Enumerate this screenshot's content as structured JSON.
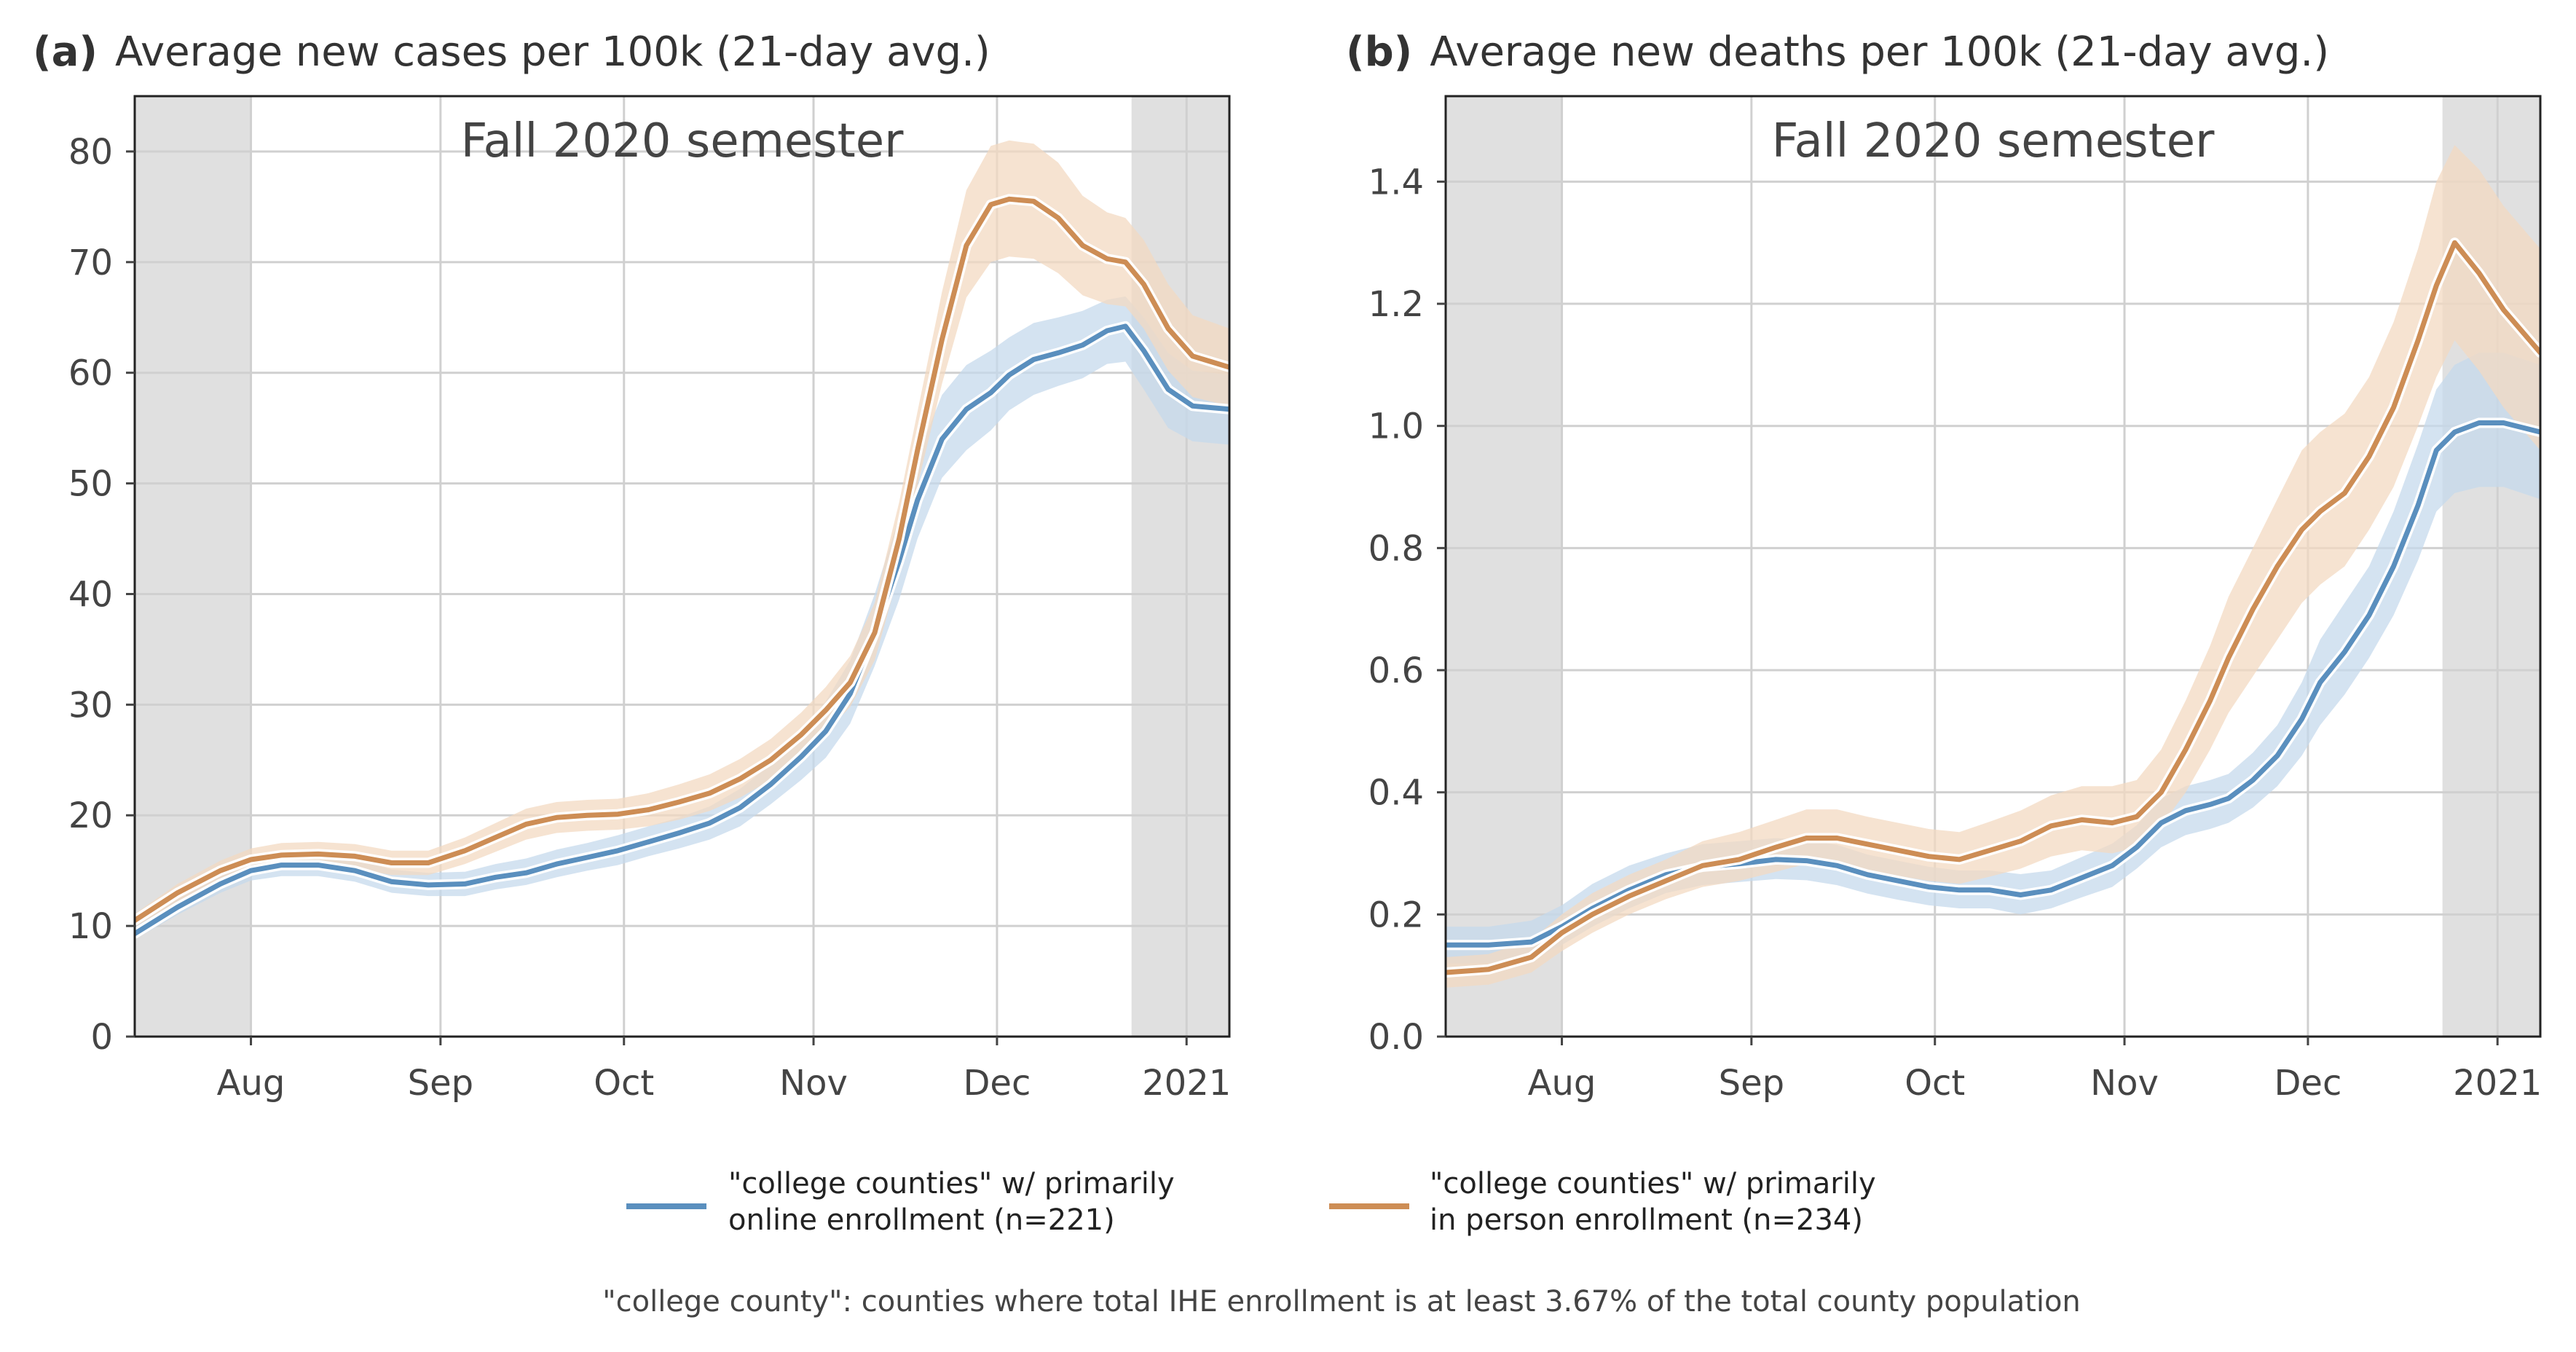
{
  "colors": {
    "online": "#5a8fbe",
    "in_person": "#cd8d55",
    "online_band": "#c6d9ec",
    "in_person_band": "#f3d9c2",
    "shade": "#e0e0e0",
    "grid": "#d0d0d0",
    "text": "#444444"
  },
  "legend": {
    "online": "\"college counties\" w/ primarily\nonline enrollment (n=221)",
    "in_person": "\"college counties\" w/ primarily\nin person enrollment (n=234)"
  },
  "footnote": "\"college county\": counties where total IHE enrollment is at least 3.67% of the total county population",
  "chart_data": [
    {
      "type": "line",
      "panel_label": "(a)",
      "title": "Average new cases per 100k (21-day avg.)",
      "annotation": "Fall 2020 semester",
      "x_unit": "date",
      "xlim": [
        "2020-07-13",
        "2021-01-08"
      ],
      "ylim": [
        0,
        85
      ],
      "x_ticks": [
        {
          "date": "2020-08-01",
          "label": "Aug"
        },
        {
          "date": "2020-09-01",
          "label": "Sep"
        },
        {
          "date": "2020-10-01",
          "label": "Oct"
        },
        {
          "date": "2020-11-01",
          "label": "Nov"
        },
        {
          "date": "2020-12-01",
          "label": "Dec"
        },
        {
          "date": "2021-01-01",
          "label": "2021"
        }
      ],
      "y_ticks": [
        0,
        10,
        20,
        30,
        40,
        50,
        60,
        70,
        80
      ],
      "y_tick_labels": [
        "0",
        "10",
        "20",
        "30",
        "40",
        "50",
        "60",
        "70",
        "80"
      ],
      "grid": true,
      "shaded_periods": [
        [
          "2020-07-13",
          "2020-08-01"
        ],
        [
          "2020-12-23",
          "2021-01-08"
        ]
      ],
      "x": [
        "2020-07-13",
        "2020-07-20",
        "2020-07-27",
        "2020-08-01",
        "2020-08-06",
        "2020-08-12",
        "2020-08-18",
        "2020-08-24",
        "2020-08-30",
        "2020-09-05",
        "2020-09-10",
        "2020-09-15",
        "2020-09-20",
        "2020-09-25",
        "2020-09-30",
        "2020-10-05",
        "2020-10-10",
        "2020-10-15",
        "2020-10-20",
        "2020-10-25",
        "2020-10-30",
        "2020-11-03",
        "2020-11-07",
        "2020-11-11",
        "2020-11-15",
        "2020-11-18",
        "2020-11-22",
        "2020-11-26",
        "2020-11-30",
        "2020-12-03",
        "2020-12-07",
        "2020-12-11",
        "2020-12-15",
        "2020-12-19",
        "2020-12-22",
        "2020-12-25",
        "2020-12-29",
        "2021-01-02",
        "2021-01-08"
      ],
      "series": [
        {
          "name": "\"college counties\" w/ primarily online enrollment (n=221)",
          "color": "#5a8fbe",
          "values": [
            9.3,
            11.7,
            13.8,
            15.0,
            15.5,
            15.5,
            15.0,
            14.0,
            13.7,
            13.8,
            14.4,
            14.8,
            15.6,
            16.2,
            16.8,
            17.6,
            18.4,
            19.3,
            20.7,
            22.8,
            25.3,
            27.6,
            31.0,
            36.5,
            43.0,
            48.5,
            54.0,
            56.7,
            58.2,
            59.8,
            61.2,
            61.8,
            62.5,
            63.8,
            64.2,
            62.0,
            58.5,
            57.0,
            56.7
          ],
          "band_lower": [
            8.8,
            11.0,
            13.0,
            14.1,
            14.5,
            14.5,
            14.0,
            13.0,
            12.7,
            12.7,
            13.3,
            13.7,
            14.4,
            15.0,
            15.5,
            16.3,
            17.0,
            17.8,
            19.0,
            21.0,
            23.2,
            25.2,
            28.3,
            33.5,
            39.5,
            45.0,
            50.5,
            53.0,
            54.8,
            56.6,
            58.0,
            58.8,
            59.5,
            60.8,
            61.0,
            58.5,
            55.0,
            53.8,
            53.5
          ],
          "band_upper": [
            9.9,
            12.4,
            14.6,
            15.9,
            16.6,
            16.6,
            16.1,
            15.1,
            14.8,
            14.9,
            15.6,
            16.1,
            16.9,
            17.5,
            18.2,
            19.0,
            19.8,
            20.8,
            22.4,
            24.6,
            27.6,
            30.3,
            34.0,
            40.0,
            47.0,
            52.5,
            58.0,
            60.7,
            62.0,
            63.2,
            64.5,
            65.0,
            65.6,
            66.6,
            66.9,
            65.0,
            61.8,
            60.2,
            59.8
          ]
        },
        {
          "name": "\"college counties\" w/ primarily in person enrollment (n=234)",
          "color": "#cd8d55",
          "values": [
            10.5,
            13.0,
            15.0,
            16.0,
            16.4,
            16.5,
            16.3,
            15.7,
            15.7,
            16.8,
            18.0,
            19.2,
            19.8,
            20.0,
            20.1,
            20.5,
            21.2,
            22.0,
            23.3,
            25.0,
            27.3,
            29.5,
            32.0,
            36.5,
            45.0,
            53.0,
            63.0,
            71.5,
            75.2,
            75.7,
            75.5,
            74.0,
            71.5,
            70.3,
            70.0,
            68.0,
            64.0,
            61.5,
            60.5
          ],
          "band_lower": [
            9.9,
            12.2,
            14.1,
            15.0,
            15.3,
            15.4,
            15.2,
            14.6,
            14.6,
            15.6,
            16.7,
            17.8,
            18.4,
            18.6,
            18.7,
            19.0,
            19.6,
            20.4,
            21.6,
            23.2,
            25.4,
            27.5,
            29.8,
            34.0,
            42.0,
            49.8,
            59.0,
            66.8,
            70.0,
            70.5,
            70.3,
            69.0,
            67.0,
            66.2,
            66.0,
            64.0,
            60.2,
            57.8,
            57.0
          ],
          "band_upper": [
            11.1,
            13.8,
            15.9,
            17.0,
            17.5,
            17.6,
            17.4,
            16.8,
            16.8,
            18.0,
            19.3,
            20.6,
            21.2,
            21.4,
            21.5,
            22.0,
            22.8,
            23.7,
            25.1,
            26.9,
            29.3,
            31.6,
            34.4,
            39.2,
            48.3,
            56.5,
            67.3,
            76.5,
            80.5,
            81.0,
            80.7,
            79.0,
            76.0,
            74.5,
            74.0,
            72.0,
            68.0,
            65.2,
            64.0
          ]
        }
      ]
    },
    {
      "type": "line",
      "panel_label": "(b)",
      "title": "Average new deaths per 100k (21-day avg.)",
      "annotation": "Fall 2020 semester",
      "x_unit": "date",
      "xlim": [
        "2020-07-13",
        "2021-01-08"
      ],
      "ylim": [
        0,
        1.54
      ],
      "x_ticks": [
        {
          "date": "2020-08-01",
          "label": "Aug"
        },
        {
          "date": "2020-09-01",
          "label": "Sep"
        },
        {
          "date": "2020-10-01",
          "label": "Oct"
        },
        {
          "date": "2020-11-01",
          "label": "Nov"
        },
        {
          "date": "2020-12-01",
          "label": "Dec"
        },
        {
          "date": "2021-01-01",
          "label": "2021"
        }
      ],
      "y_ticks": [
        0,
        0.2,
        0.4,
        0.6,
        0.8,
        1.0,
        1.2,
        1.4
      ],
      "y_tick_labels": [
        "0.0",
        "0.2",
        "0.4",
        "0.6",
        "0.8",
        "1.0",
        "1.2",
        "1.4"
      ],
      "grid": true,
      "shaded_periods": [
        [
          "2020-07-13",
          "2020-08-01"
        ],
        [
          "2020-12-23",
          "2021-01-08"
        ]
      ],
      "x": [
        "2020-07-13",
        "2020-07-20",
        "2020-07-27",
        "2020-08-01",
        "2020-08-06",
        "2020-08-12",
        "2020-08-18",
        "2020-08-24",
        "2020-08-30",
        "2020-09-05",
        "2020-09-10",
        "2020-09-15",
        "2020-09-20",
        "2020-09-25",
        "2020-09-30",
        "2020-10-05",
        "2020-10-10",
        "2020-10-15",
        "2020-10-20",
        "2020-10-25",
        "2020-10-30",
        "2020-11-03",
        "2020-11-07",
        "2020-11-11",
        "2020-11-15",
        "2020-11-18",
        "2020-11-22",
        "2020-11-26",
        "2020-11-30",
        "2020-12-03",
        "2020-12-07",
        "2020-12-11",
        "2020-12-15",
        "2020-12-19",
        "2020-12-22",
        "2020-12-25",
        "2020-12-29",
        "2021-01-02",
        "2021-01-08"
      ],
      "series": [
        {
          "name": "\"college counties\" w/ primarily online enrollment (n=221)",
          "color": "#5a8fbe",
          "values": [
            0.15,
            0.15,
            0.155,
            0.18,
            0.21,
            0.24,
            0.265,
            0.278,
            0.283,
            0.29,
            0.288,
            0.28,
            0.265,
            0.255,
            0.245,
            0.24,
            0.24,
            0.232,
            0.24,
            0.26,
            0.28,
            0.31,
            0.35,
            0.37,
            0.38,
            0.39,
            0.42,
            0.46,
            0.52,
            0.58,
            0.63,
            0.69,
            0.77,
            0.87,
            0.96,
            0.99,
            1.005,
            1.005,
            0.99
          ],
          "band_lower": [
            0.12,
            0.12,
            0.125,
            0.15,
            0.18,
            0.21,
            0.235,
            0.248,
            0.253,
            0.258,
            0.256,
            0.248,
            0.234,
            0.224,
            0.215,
            0.21,
            0.21,
            0.2,
            0.21,
            0.228,
            0.245,
            0.275,
            0.31,
            0.33,
            0.34,
            0.35,
            0.375,
            0.41,
            0.46,
            0.51,
            0.56,
            0.62,
            0.69,
            0.78,
            0.86,
            0.89,
            0.9,
            0.9,
            0.88
          ],
          "band_upper": [
            0.18,
            0.18,
            0.19,
            0.215,
            0.25,
            0.28,
            0.3,
            0.315,
            0.32,
            0.325,
            0.322,
            0.314,
            0.298,
            0.288,
            0.278,
            0.272,
            0.272,
            0.266,
            0.272,
            0.294,
            0.316,
            0.346,
            0.39,
            0.41,
            0.42,
            0.43,
            0.465,
            0.51,
            0.58,
            0.65,
            0.71,
            0.77,
            0.86,
            0.97,
            1.06,
            1.1,
            1.12,
            1.12,
            1.1
          ]
        },
        {
          "name": "\"college counties\" w/ primarily in person enrollment (n=234)",
          "color": "#cd8d55",
          "values": [
            0.105,
            0.11,
            0.13,
            0.17,
            0.2,
            0.23,
            0.255,
            0.28,
            0.29,
            0.31,
            0.325,
            0.325,
            0.315,
            0.305,
            0.295,
            0.29,
            0.305,
            0.32,
            0.345,
            0.355,
            0.35,
            0.36,
            0.4,
            0.47,
            0.55,
            0.62,
            0.7,
            0.77,
            0.83,
            0.86,
            0.89,
            0.95,
            1.03,
            1.14,
            1.23,
            1.3,
            1.25,
            1.19,
            1.12
          ],
          "band_lower": [
            0.08,
            0.085,
            0.105,
            0.14,
            0.17,
            0.2,
            0.225,
            0.245,
            0.255,
            0.27,
            0.283,
            0.283,
            0.273,
            0.263,
            0.255,
            0.25,
            0.262,
            0.275,
            0.295,
            0.305,
            0.3,
            0.31,
            0.345,
            0.4,
            0.47,
            0.53,
            0.59,
            0.65,
            0.71,
            0.74,
            0.77,
            0.83,
            0.9,
            1.0,
            1.08,
            1.14,
            1.09,
            1.03,
            0.96
          ],
          "band_upper": [
            0.13,
            0.135,
            0.158,
            0.2,
            0.235,
            0.265,
            0.29,
            0.32,
            0.335,
            0.355,
            0.372,
            0.372,
            0.36,
            0.35,
            0.34,
            0.335,
            0.352,
            0.37,
            0.395,
            0.41,
            0.41,
            0.42,
            0.47,
            0.55,
            0.64,
            0.72,
            0.8,
            0.88,
            0.96,
            0.99,
            1.02,
            1.08,
            1.17,
            1.29,
            1.4,
            1.46,
            1.42,
            1.36,
            1.29
          ]
        }
      ]
    }
  ]
}
